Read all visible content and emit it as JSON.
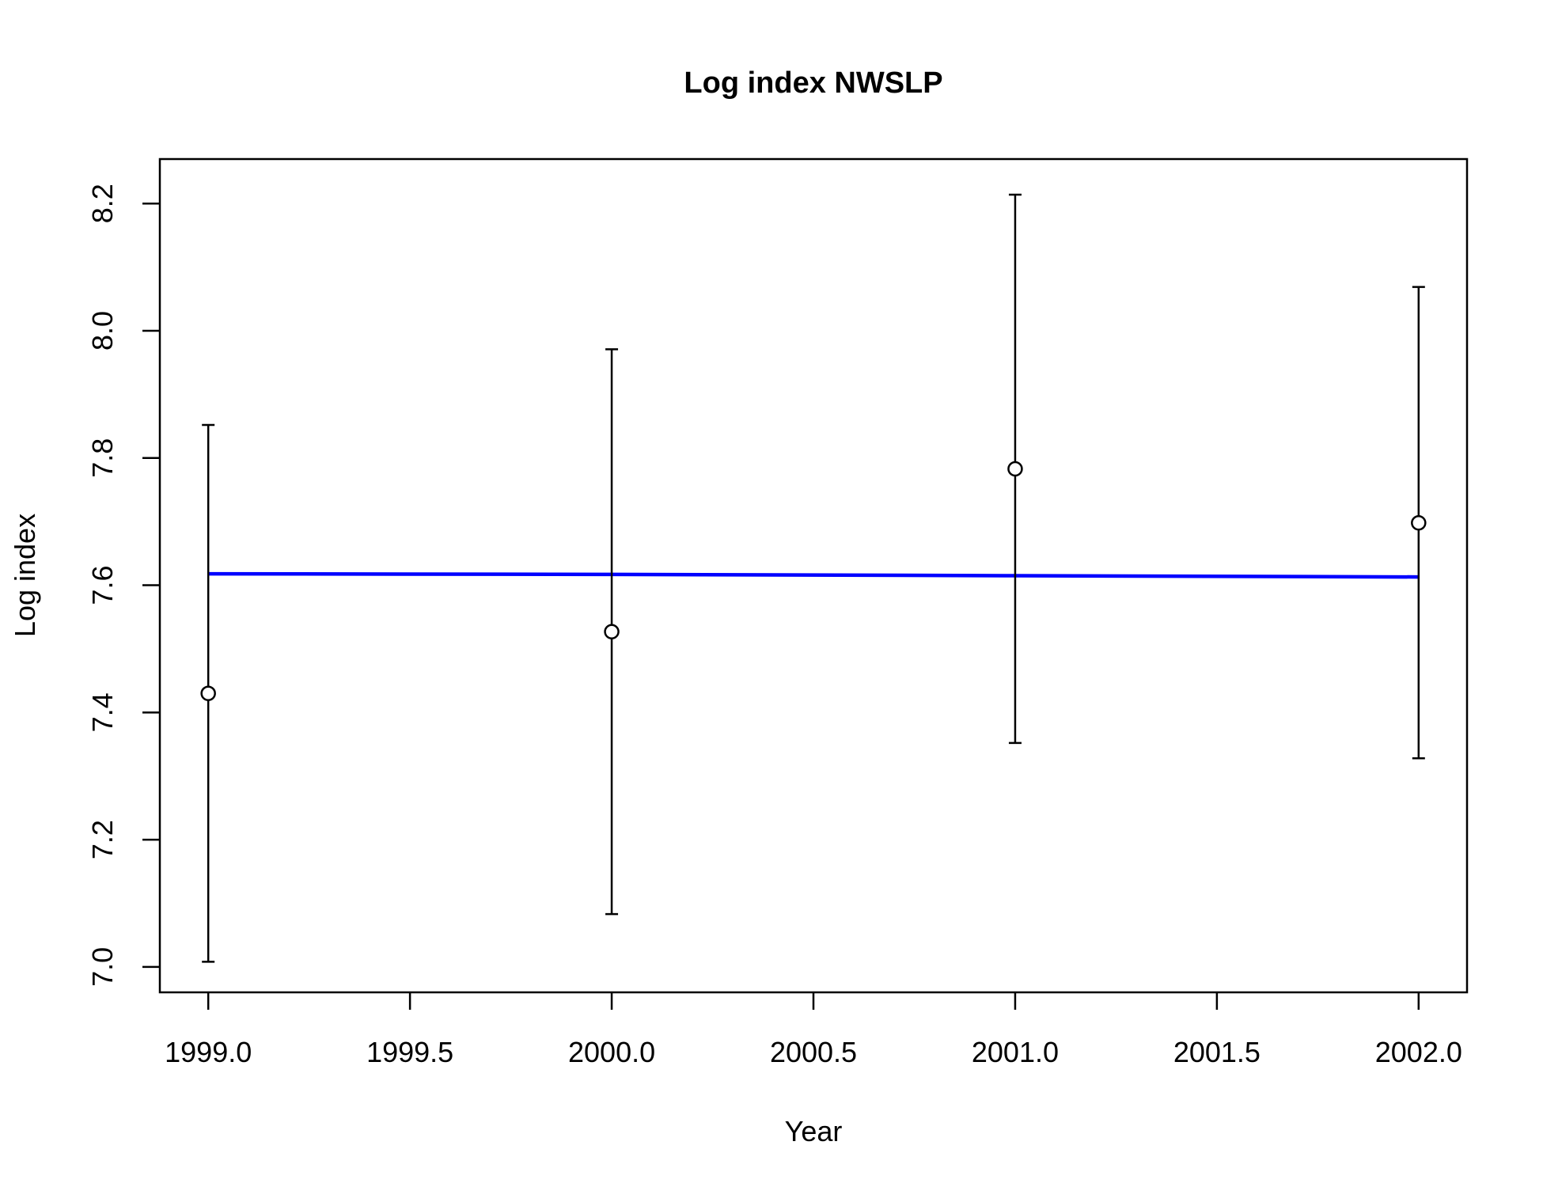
{
  "chart_data": {
    "type": "scatter",
    "title": "Log index NWSLP",
    "xlabel": "Year",
    "ylabel": "Log index",
    "xlim": [
      1998.88,
      2002.12
    ],
    "ylim": [
      6.96,
      8.27
    ],
    "xticks": [
      1999.0,
      1999.5,
      2000.0,
      2000.5,
      2001.0,
      2001.5,
      2002.0
    ],
    "xtick_labels": [
      "1999.0",
      "1999.5",
      "2000.0",
      "2000.5",
      "2001.0",
      "2001.5",
      "2002.0"
    ],
    "yticks": [
      7.0,
      7.2,
      7.4,
      7.6,
      7.8,
      8.0,
      8.2
    ],
    "ytick_labels": [
      "7.0",
      "7.2",
      "7.4",
      "7.6",
      "7.8",
      "8.0",
      "8.2"
    ],
    "grid": false,
    "series": [
      {
        "kind": "points-with-error-bars",
        "color": "#000000",
        "x": [
          1999,
          2000,
          2001,
          2002
        ],
        "y": [
          7.43,
          7.527,
          7.783,
          7.698
        ],
        "lower": [
          7.008,
          7.083,
          7.352,
          7.328
        ],
        "upper": [
          7.852,
          7.971,
          8.214,
          8.069
        ]
      },
      {
        "kind": "line",
        "color": "#0000ff",
        "x": [
          1999,
          2000,
          2001,
          2002
        ],
        "y": [
          7.618,
          7.617,
          7.615,
          7.613
        ]
      }
    ]
  }
}
